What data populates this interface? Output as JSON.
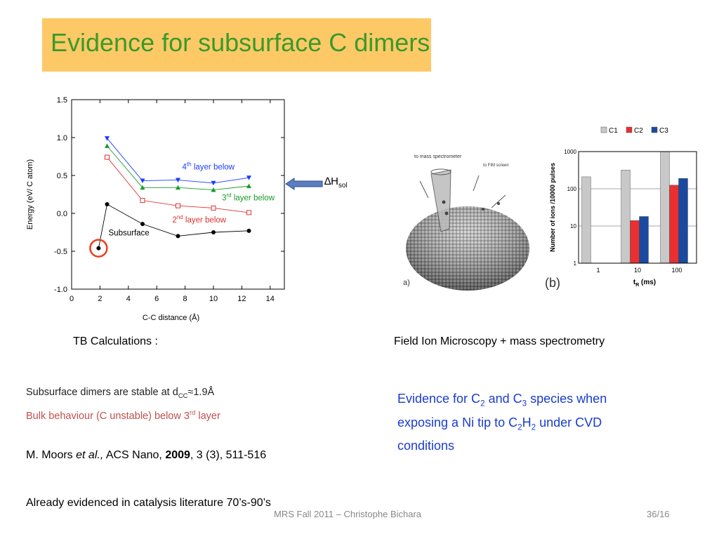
{
  "slide": {
    "title": "Evidence for subsurface C dimers",
    "footer": "MRS Fall 2011 – Christophe Bichara",
    "page": "36/16"
  },
  "colors": {
    "title_bg": "#fdc967",
    "title_text": "#3a9a2a",
    "blue_text": "#1a3ccc",
    "red_text": "#c0504d"
  },
  "captions": {
    "tb": "TB Calculations :",
    "fim": "Field Ion Microscopy + mass spectrometry"
  },
  "left_text": {
    "line1_pre": "Subsurface dimers are stable at d",
    "line1_sub": "CC",
    "line1_post": "≈1.9Å",
    "line2_pre": "Bulk behaviour (C unstable) below 3",
    "line2_sup": "rd",
    "line2_post": " layer",
    "ref_author": "M. Moors ",
    "ref_etal": "et al.,",
    "ref_journal": " ACS Nano, ",
    "ref_year": "2009",
    "ref_rest": ", 3 (3), 511-516",
    "already": "Already evidenced in catalysis literature 70’s-90’s"
  },
  "right_text": {
    "l1_a": "Evidence for C",
    "l1_s1": "2",
    "l1_b": " and C",
    "l1_s2": "3",
    "l1_c": " species when",
    "l2_a": "exposing a Ni tip to C",
    "l2_s1": "2",
    "l2_b": "H",
    "l2_s2": "2",
    "l2_c": " under CVD",
    "l3": "conditions"
  },
  "arrow_label": {
    "delta": "∆H",
    "sub": "sol"
  },
  "fim_image": {
    "to_mass": "to mass spectrometer",
    "to_fim": "to FIM screen",
    "panel": "a)"
  },
  "chart_data": [
    {
      "type": "line",
      "xlabel": "C-C distance (Å)",
      "ylabel": "Energy (eV/ C atom)",
      "xlim": [
        0,
        15
      ],
      "ylim": [
        -1.0,
        1.5
      ],
      "xticks": [
        0,
        2,
        4,
        6,
        8,
        10,
        12,
        14
      ],
      "yticks": [
        -1.0,
        -0.5,
        0.0,
        0.5,
        1.0,
        1.5
      ],
      "ytick_labels": [
        "-1.0",
        "-0.5",
        "0.0",
        "0.5",
        "1.0",
        "1.5"
      ],
      "series": [
        {
          "name": "4th layer below",
          "color": "#1a3cff",
          "marker": "triangle-down",
          "x": [
            2.5,
            5,
            7.5,
            10,
            12.5
          ],
          "y": [
            0.99,
            0.43,
            0.44,
            0.4,
            0.47
          ]
        },
        {
          "name": "3rd layer below",
          "color": "#1a9a2a",
          "marker": "triangle-up",
          "x": [
            2.5,
            5,
            7.5,
            10,
            12.5
          ],
          "y": [
            0.89,
            0.34,
            0.34,
            0.31,
            0.36
          ]
        },
        {
          "name": "2nd layer below",
          "color": "#e03030",
          "marker": "square-open",
          "x": [
            2.5,
            5,
            7.5,
            10,
            12.5
          ],
          "y": [
            0.74,
            0.17,
            0.1,
            0.07,
            0.01
          ]
        },
        {
          "name": "Subsurface",
          "color": "#000000",
          "marker": "circle",
          "x": [
            1.9,
            2.5,
            5,
            7.5,
            10,
            12.5
          ],
          "y": [
            -0.46,
            0.12,
            -0.14,
            -0.3,
            -0.25,
            -0.23
          ]
        }
      ],
      "labels": [
        {
          "series": 0,
          "pre": "4",
          "sup": "th",
          "post": " layer below",
          "color": "#1a3cff"
        },
        {
          "series": 1,
          "pre": "3",
          "sup": "rd",
          "post": " layer below",
          "color": "#1a9a2a"
        },
        {
          "series": 2,
          "pre": "2",
          "sup": "nd",
          "post": " layer below",
          "color": "#e03030"
        },
        {
          "series": 3,
          "pre": "Subsurface",
          "sup": "",
          "post": "",
          "color": "#000000"
        }
      ],
      "highlight": {
        "x": 1.9,
        "y": -0.46,
        "color": "#e8401c"
      }
    },
    {
      "type": "bar",
      "panel": "(b)",
      "xlabel_main": "t",
      "xlabel_sub": "R",
      "xlabel_unit": " (ms)",
      "ylabel": "Number of ions /10000 pulses",
      "yscale": "log",
      "ylim": [
        1,
        1000
      ],
      "ytick_values": [
        1,
        10,
        100,
        1000
      ],
      "ytick_labels": [
        "1",
        "10",
        "100",
        "1000"
      ],
      "categories": [
        "1",
        "10",
        "100"
      ],
      "series": [
        {
          "name": "C1",
          "color": "#c8c8c8",
          "values": [
            210,
            320,
            1000
          ]
        },
        {
          "name": "C2",
          "color": "#e83030",
          "values": [
            null,
            14,
            125
          ]
        },
        {
          "name": "C3",
          "color": "#1a4aa0",
          "values": [
            null,
            18,
            190
          ]
        }
      ],
      "legend_position": "top"
    }
  ]
}
